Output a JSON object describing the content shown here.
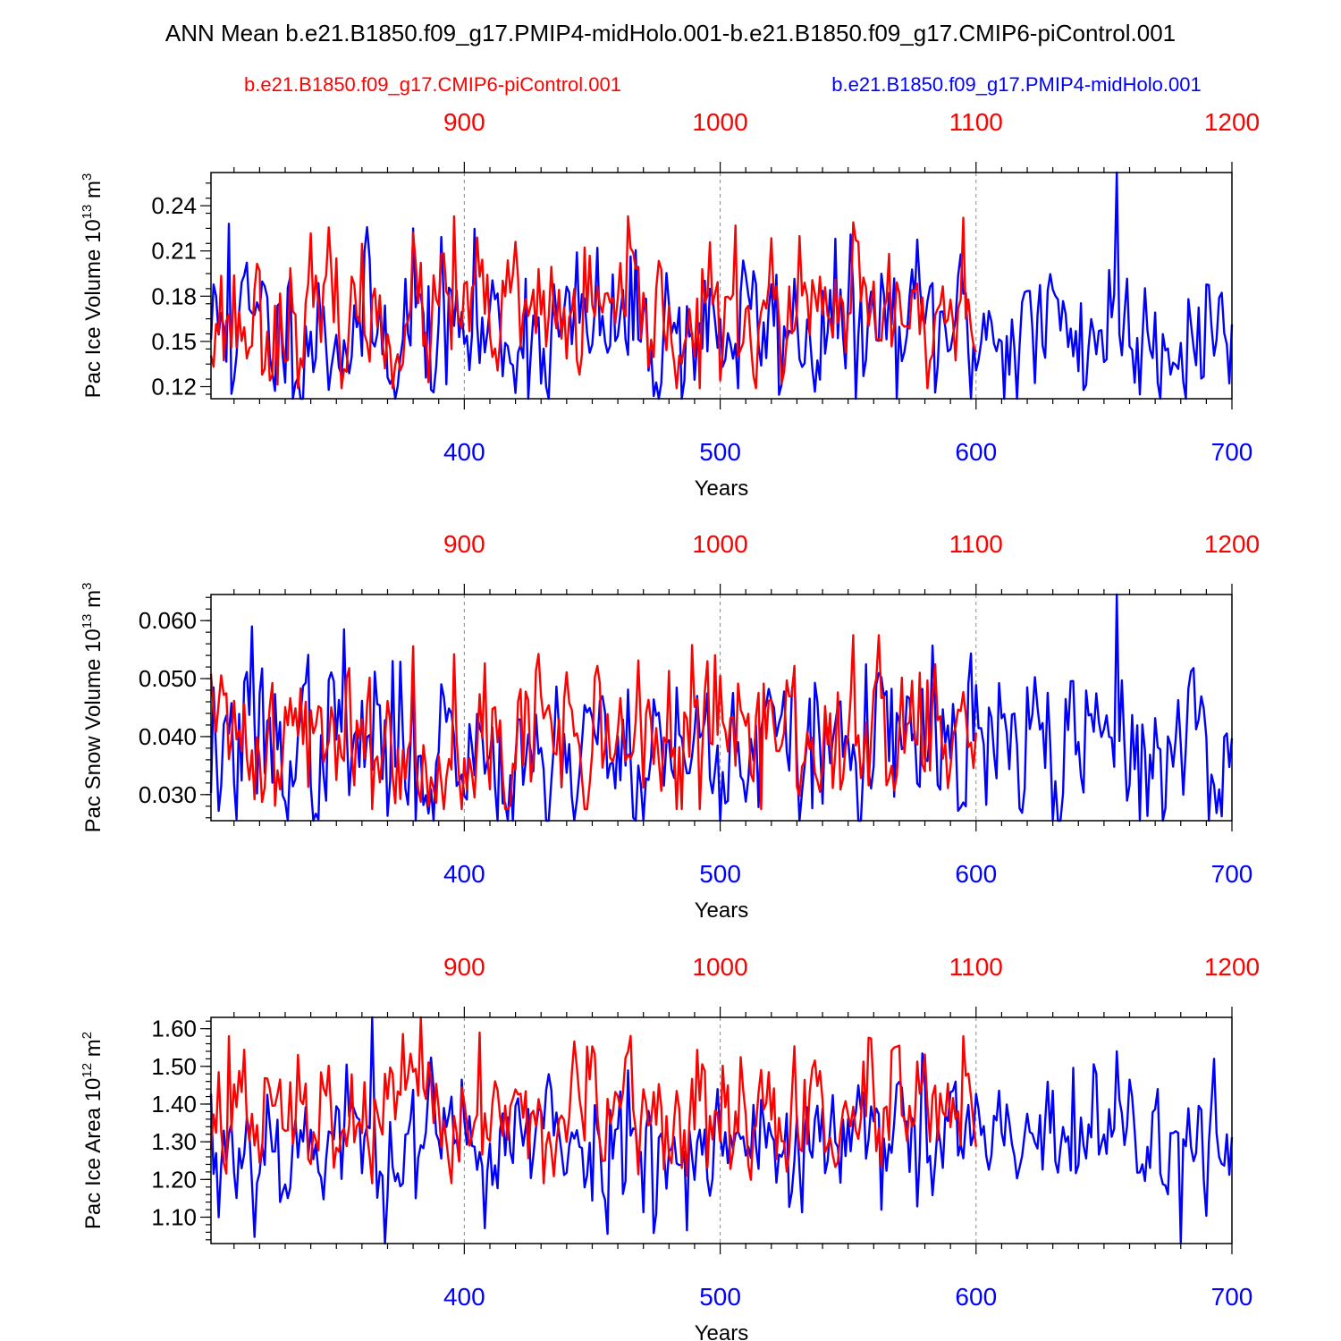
{
  "title": "ANN Mean b.e21.B1850.f09_g17.PMIP4-midHolo.001-b.e21.B1850.f09_g17.CMIP6-piControl.001",
  "legend": {
    "left_label": "b.e21.B1850.f09_g17.CMIP6-piControl.001",
    "right_label": "b.e21.B1850.f09_g17.PMIP4-midHolo.001"
  },
  "colors": {
    "red": "#ff0000",
    "blue": "#0000ff",
    "grid": "#888888"
  },
  "chart_data": [
    {
      "type": "line",
      "ylabel": "Pac Ice Volume 10",
      "ylabel_exp": "13",
      "ylabel_unit": " m",
      "ylabel_unit_exp": "3",
      "xlabel": "Years",
      "ylim": [
        0.112,
        0.262
      ],
      "yticks": [
        0.12,
        0.15,
        0.18,
        0.21,
        0.24
      ],
      "ytick_labels": [
        "0.12",
        "0.15",
        "0.18",
        "0.21",
        "0.24"
      ],
      "ymin_minor": 0.115,
      "ymax_minor": 0.26,
      "yminor_step": 0.01,
      "xlim_bottom": [
        301,
        700
      ],
      "xticks_bottom": [
        400,
        500,
        600,
        700
      ],
      "xlim_top": [
        801,
        1200
      ],
      "xticks_top": [
        900,
        1000,
        1100,
        1200
      ],
      "series": [
        {
          "name": "b.e21.B1850.f09_g17.PMIP4-midHolo.001",
          "color": "blue",
          "axis": "bottom",
          "x_start": 301,
          "mean": 0.158,
          "amp": 0.025,
          "min": 0.112,
          "max": 0.262,
          "seed": 11,
          "n": 400,
          "spikes": [
            [
              655,
              0.262
            ],
            [
              433,
              0.112
            ],
            [
              308,
              0.228
            ],
            [
              380,
              0.225
            ]
          ]
        },
        {
          "name": "b.e21.B1850.f09_g17.CMIP6-piControl.001",
          "color": "red",
          "axis": "top",
          "x_start": 801,
          "mean": 0.165,
          "amp": 0.022,
          "min": 0.119,
          "max": 0.233,
          "seed": 23,
          "n": 300,
          "spikes": [
            [
              896,
              0.233
            ],
            [
              1095,
              0.232
            ],
            [
              1052,
              0.229
            ],
            [
              992,
              0.119
            ]
          ]
        }
      ]
    },
    {
      "type": "line",
      "ylabel": "Pac Snow Volume 10",
      "ylabel_exp": "13",
      "ylabel_unit": " m",
      "ylabel_unit_exp": "3",
      "xlabel": "Years",
      "ylim": [
        0.0255,
        0.0645
      ],
      "yticks": [
        0.03,
        0.04,
        0.05,
        0.06
      ],
      "ytick_labels": [
        "0.030",
        "0.040",
        "0.050",
        "0.060"
      ],
      "ymin_minor": 0.026,
      "ymax_minor": 0.064,
      "yminor_step": 0.002,
      "xlim_bottom": [
        301,
        700
      ],
      "xticks_bottom": [
        400,
        500,
        600,
        700
      ],
      "xlim_top": [
        801,
        1200
      ],
      "xticks_top": [
        900,
        1000,
        1100,
        1200
      ],
      "series": [
        {
          "name": "b.e21.B1850.f09_g17.PMIP4-midHolo.001",
          "color": "blue",
          "axis": "bottom",
          "x_start": 301,
          "mean": 0.038,
          "amp": 0.007,
          "min": 0.0255,
          "max": 0.0645,
          "seed": 37,
          "n": 400,
          "spikes": [
            [
              655,
              0.0645
            ],
            [
              433,
              0.0255
            ],
            [
              317,
              0.059
            ],
            [
              353,
              0.0585
            ]
          ]
        },
        {
          "name": "b.e21.B1850.f09_g17.CMIP6-piControl.001",
          "color": "red",
          "axis": "top",
          "x_start": 801,
          "mean": 0.04,
          "amp": 0.0065,
          "min": 0.0275,
          "max": 0.0575,
          "seed": 41,
          "n": 300,
          "spikes": [
            [
              1052,
              0.0575
            ],
            [
              896,
              0.0542
            ],
            [
              992,
              0.0275
            ]
          ]
        }
      ]
    },
    {
      "type": "line",
      "ylabel": "Pac Ice Area 10",
      "ylabel_exp": "12",
      "ylabel_unit": " m",
      "ylabel_unit_exp": "2",
      "xlabel": "Years",
      "ylim": [
        1.03,
        1.63
      ],
      "yticks": [
        1.1,
        1.2,
        1.3,
        1.4,
        1.5,
        1.6
      ],
      "ytick_labels": [
        "1.10",
        "1.20",
        "1.30",
        "1.40",
        "1.50",
        "1.60"
      ],
      "ymin_minor": 1.04,
      "ymax_minor": 1.62,
      "yminor_step": 0.02,
      "xlim_bottom": [
        301,
        700
      ],
      "xticks_bottom": [
        400,
        500,
        600,
        700
      ],
      "xlim_top": [
        801,
        1200
      ],
      "xticks_top": [
        900,
        1000,
        1100,
        1200
      ],
      "series": [
        {
          "name": "b.e21.B1850.f09_g17.PMIP4-midHolo.001",
          "color": "blue",
          "axis": "bottom",
          "x_start": 301,
          "mean": 1.3,
          "amp": 0.09,
          "min": 1.03,
          "max": 1.63,
          "seed": 53,
          "n": 400,
          "spikes": [
            [
              364,
              1.63
            ],
            [
              680,
              1.03
            ],
            [
              655,
              1.54
            ],
            [
              304,
              1.1
            ]
          ]
        },
        {
          "name": "b.e21.B1850.f09_g17.CMIP6-piControl.001",
          "color": "red",
          "axis": "top",
          "x_start": 801,
          "mean": 1.36,
          "amp": 0.08,
          "min": 1.19,
          "max": 1.63,
          "seed": 67,
          "n": 300,
          "spikes": [
            [
              883,
              1.63
            ],
            [
              808,
              1.58
            ],
            [
              1095,
              1.58
            ],
            [
              906,
              1.59
            ]
          ]
        }
      ]
    }
  ]
}
